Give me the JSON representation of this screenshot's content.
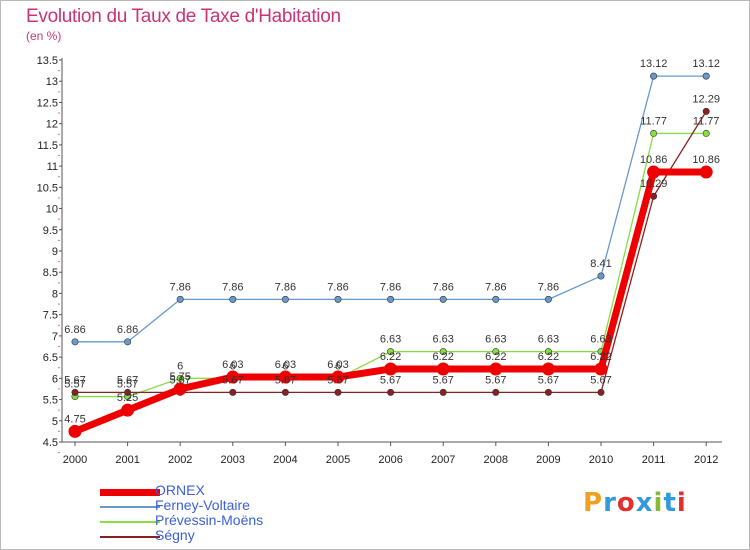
{
  "title": "Evolution du Taux de Taxe d'Habitation",
  "subtitle": "(en %)",
  "logo": {
    "text": "Proxiti",
    "colors": [
      "#f0a020",
      "#3399dd",
      "#e03030",
      "#3399dd",
      "#88bb33",
      "#3399dd",
      "#e03030"
    ]
  },
  "chart_data": {
    "type": "line",
    "x": [
      "2000",
      "2001",
      "2002",
      "2003",
      "2004",
      "2005",
      "2006",
      "2007",
      "2008",
      "2009",
      "2010",
      "2011",
      "2012"
    ],
    "ylim": [
      4.5,
      13.5
    ],
    "yticks": [
      "4.5",
      "5",
      "5.5",
      "6",
      "6.5",
      "7",
      "7.5",
      "8",
      "8.5",
      "9",
      "9.5",
      "10",
      "10.5",
      "11",
      "11.5",
      "12",
      "12.5",
      "13",
      "13.5"
    ],
    "grid": false,
    "legend_position": "bottom-left",
    "series": [
      {
        "name": "ORNEX",
        "color": "#ee0000",
        "values": [
          4.75,
          5.25,
          5.75,
          6.03,
          6.03,
          6.03,
          6.22,
          6.22,
          6.22,
          6.22,
          6.22,
          10.86,
          10.86
        ],
        "labels": [
          "4.75",
          "5.25",
          "5.75",
          "6.03",
          "6.03",
          "6.03",
          "6.22",
          "6.22",
          "6.22",
          "6.22",
          "6.22",
          "10.86",
          "10.86"
        ]
      },
      {
        "name": "Ferney-Voltaire",
        "color": "#6699cc",
        "values": [
          6.86,
          6.86,
          7.86,
          7.86,
          7.86,
          7.86,
          7.86,
          7.86,
          7.86,
          7.86,
          8.41,
          13.12,
          13.12
        ],
        "labels": [
          "6.86",
          "6.86",
          "7.86",
          "7.86",
          "7.86",
          "7.86",
          "7.86",
          "7.86",
          "7.86",
          "7.86",
          "8.41",
          "13.12",
          "13.12"
        ]
      },
      {
        "name": "Prévessin-Moëns",
        "color": "#88dd44",
        "values": [
          5.57,
          5.57,
          6.0,
          6.0,
          6.0,
          6.0,
          6.63,
          6.63,
          6.63,
          6.63,
          6.63,
          11.77,
          11.77
        ],
        "labels": [
          "5.57",
          "5.57",
          "6",
          "6",
          "6",
          "6",
          "6.63",
          "6.63",
          "6.63",
          "6.63",
          "6.63",
          "11.77",
          "11.77"
        ]
      },
      {
        "name": "Ségny",
        "color": "#882222",
        "values": [
          5.67,
          5.67,
          5.67,
          5.67,
          5.67,
          5.67,
          5.67,
          5.67,
          5.67,
          5.67,
          5.67,
          10.29,
          12.29
        ],
        "labels": [
          "5.67",
          "5.67",
          "5.67",
          "5.67",
          "5.67",
          "5.67",
          "5.67",
          "5.67",
          "5.67",
          "5.67",
          "5.67",
          "10.29",
          "12.29"
        ]
      }
    ]
  }
}
